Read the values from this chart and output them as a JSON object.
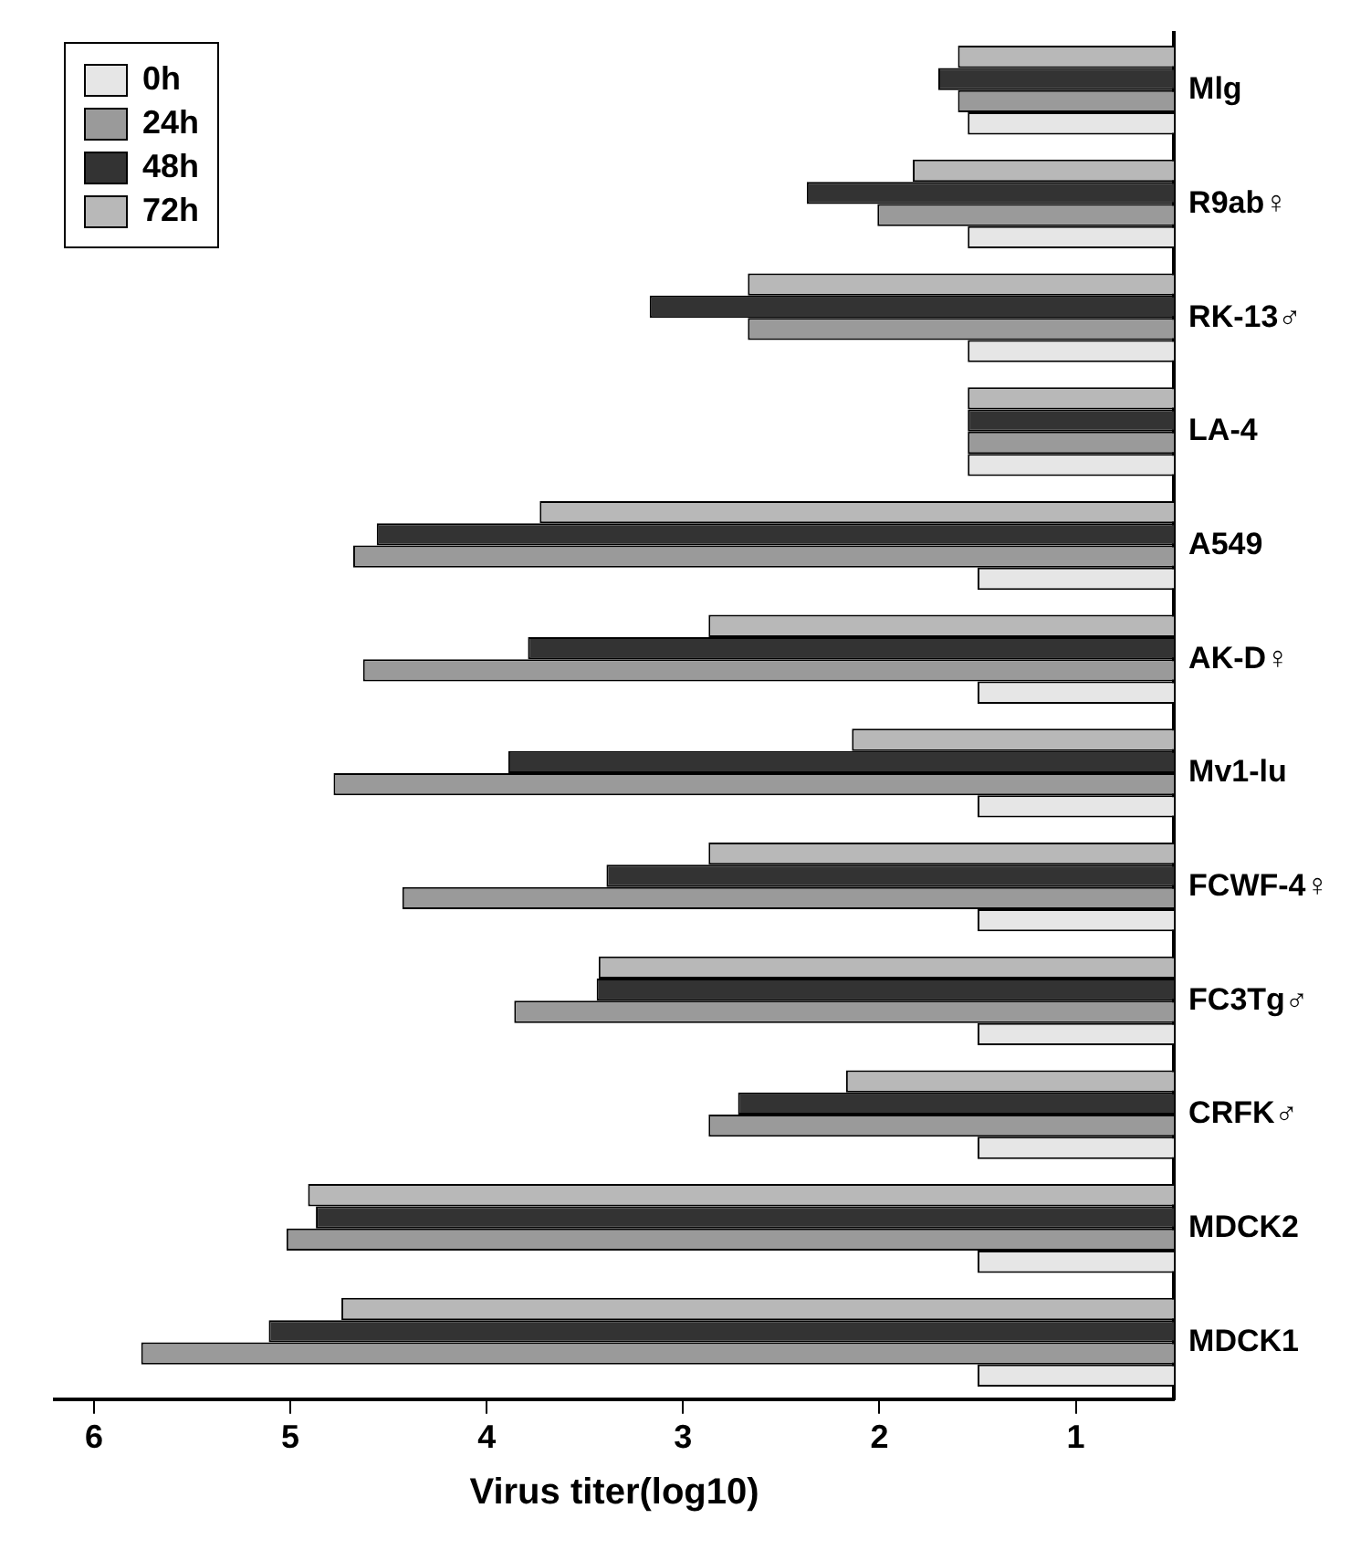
{
  "chart_data": {
    "type": "bar",
    "orientation": "horizontal",
    "categories": [
      "Mlg",
      "R9ab♀",
      "RK-13♂",
      "LA-4",
      "A549",
      "AK-D♀",
      "Mv1-lu",
      "FCWF-4♀",
      "FC3Tg♂",
      "CRFK♂",
      "MDCK2",
      "MDCK1"
    ],
    "series": [
      {
        "name": "0h",
        "color": "#e6e6e6",
        "values": [
          1.55,
          1.55,
          1.55,
          1.55,
          1.5,
          1.5,
          1.5,
          1.5,
          1.5,
          1.5,
          1.5,
          1.5
        ]
      },
      {
        "name": "24h",
        "color": "#9a9a9a",
        "values": [
          1.6,
          2.01,
          2.67,
          1.55,
          4.68,
          4.63,
          4.78,
          4.43,
          3.86,
          2.87,
          5.02,
          5.76
        ]
      },
      {
        "name": "48h",
        "color": "#333333",
        "values": [
          1.7,
          2.37,
          3.17,
          1.55,
          4.56,
          3.79,
          3.89,
          3.39,
          3.44,
          2.72,
          4.87,
          5.11
        ]
      },
      {
        "name": "72h",
        "color": "#b8b8b8",
        "values": [
          1.6,
          1.83,
          2.67,
          1.55,
          3.73,
          2.87,
          2.14,
          2.87,
          3.43,
          2.17,
          4.91,
          4.74
        ]
      }
    ],
    "xlabel": "Virus titer(log10)",
    "xlim": [
      6.2,
      0.5
    ],
    "xticks": [
      6,
      5,
      4,
      3,
      2,
      1
    ],
    "grid": false,
    "legend": "top left"
  }
}
